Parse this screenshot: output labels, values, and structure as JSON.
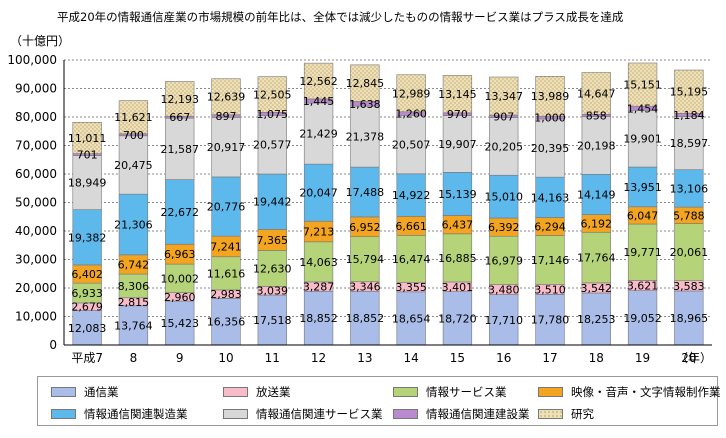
{
  "title": "平成20年の情報通信産業の市場規模の前年比は、全体では減少したものの情報サービス業はプラス成長を達成",
  "chart_data": {
    "type": "bar",
    "stacked": true,
    "y_unit_label": "（十億円）",
    "x_unit_label": "（年）",
    "ylim": [
      0,
      100000
    ],
    "yticks": [
      "0",
      "10,000",
      "20,000",
      "30,000",
      "40,000",
      "50,000",
      "60,000",
      "70,000",
      "80,000",
      "90,000",
      "100,000"
    ],
    "ytick_values": [
      0,
      10000,
      20000,
      30000,
      40000,
      50000,
      60000,
      70000,
      80000,
      90000,
      100000
    ],
    "categories": [
      "平成7",
      "8",
      "9",
      "10",
      "11",
      "12",
      "13",
      "14",
      "15",
      "16",
      "17",
      "18",
      "19",
      "20"
    ],
    "grid": true,
    "legend_position": "bottom",
    "series": [
      {
        "name": "通信業",
        "color": "#a9bde8",
        "label_color": "#ffffff",
        "values": [
          12083,
          13764,
          15423,
          16356,
          17518,
          18852,
          18852,
          18654,
          18720,
          17710,
          17780,
          18253,
          19052,
          18965
        ],
        "labels": [
          "12,083",
          "13,764",
          "15,423",
          "16,356",
          "17,518",
          "18,852",
          "18,852",
          "18,654",
          "18,720",
          "17,710",
          "17,780",
          "18,253",
          "19,052",
          "18,965"
        ]
      },
      {
        "name": "放送業",
        "color": "#f7bcc8",
        "label_color": "#d2002a",
        "values": [
          2679,
          2815,
          2960,
          2983,
          3039,
          3287,
          3346,
          3355,
          3401,
          3480,
          3510,
          3542,
          3621,
          3583
        ],
        "labels": [
          "2,679",
          "2,815",
          "2,960",
          "2,983",
          "3,039",
          "3,287",
          "3,346",
          "3,355",
          "3,401",
          "3,480",
          "3,510",
          "3,542",
          "3,621",
          "3,583"
        ]
      },
      {
        "name": "情報サービス業",
        "color": "#b5d47a",
        "label_color": "#000000",
        "values": [
          6933,
          8306,
          10002,
          11616,
          12630,
          14063,
          15794,
          16474,
          16885,
          16979,
          17146,
          17764,
          19771,
          20061
        ],
        "labels": [
          "6,933",
          "8,306",
          "10,002",
          "11,616",
          "12,630",
          "14,063",
          "15,794",
          "16,474",
          "16,885",
          "16,979",
          "17,146",
          "17,764",
          "19,771",
          "20,061"
        ]
      },
      {
        "name": "映像・音声・文字情報制作業",
        "color": "#f3a521",
        "label_color": "#b0001a",
        "values": [
          6402,
          6742,
          6963,
          7241,
          7365,
          7213,
          6952,
          6661,
          6437,
          6392,
          6294,
          6192,
          6047,
          5788
        ],
        "labels": [
          "6,402",
          "6,742",
          "6,963",
          "7,241",
          "7,365",
          "7,213",
          "6,952",
          "6,661",
          "6,437",
          "6,392",
          "6,294",
          "6,192",
          "6,047",
          "5,788"
        ]
      },
      {
        "name": "情報通信関連製造業",
        "color": "#5db8ec",
        "label_color": "#000000",
        "values": [
          19382,
          21306,
          22672,
          20776,
          19442,
          20047,
          17488,
          14922,
          15139,
          15010,
          14163,
          14149,
          13951,
          13106
        ],
        "labels": [
          "19,382",
          "21,306",
          "22,672",
          "20,776",
          "19,442",
          "20,047",
          "17,488",
          "14,922",
          "15,139",
          "15,010",
          "14,163",
          "14,149",
          "13,951",
          "13,106"
        ]
      },
      {
        "name": "情報通信関連サービス業",
        "color": "#d8d8d8",
        "label_color": "#000000",
        "values": [
          18949,
          20475,
          21587,
          20917,
          20577,
          21429,
          21378,
          20507,
          19907,
          20205,
          20395,
          20198,
          19901,
          18597
        ],
        "labels": [
          "18,949",
          "20,475",
          "21,587",
          "20,917",
          "20,577",
          "21,429",
          "21,378",
          "20,507",
          "19,907",
          "20,205",
          "20,395",
          "20,198",
          "19,901",
          "18,597"
        ]
      },
      {
        "name": "情報通信関連建設業",
        "color": "#b98ad0",
        "label_color": "#ffffff",
        "values": [
          701,
          700,
          667,
          897,
          1075,
          1445,
          1638,
          1260,
          970,
          907,
          1000,
          858,
          1454,
          1184
        ],
        "labels": [
          "701",
          "700",
          "667",
          "897",
          "1,075",
          "1,445",
          "1,638",
          "1,260",
          "970",
          "907",
          "1,000",
          "858",
          "1,454",
          "1,184"
        ]
      },
      {
        "name": "研究",
        "color": "#efe0b6",
        "label_color": "#000000",
        "values": [
          11011,
          11621,
          12193,
          12639,
          12505,
          12562,
          12845,
          12989,
          13145,
          13347,
          13989,
          14647,
          15151,
          15195
        ],
        "labels": [
          "11,011",
          "11,621",
          "12,193",
          "12,639",
          "12,505",
          "12,562",
          "12,845",
          "12,989",
          "13,145",
          "13,347",
          "13,989",
          "14,647",
          "15,151",
          "15,195"
        ]
      }
    ]
  }
}
